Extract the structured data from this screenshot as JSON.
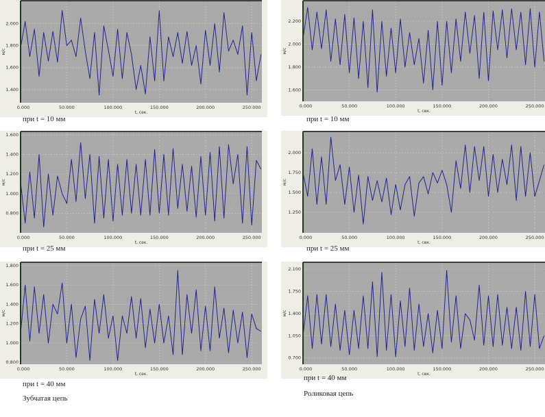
{
  "captions": {
    "c1": "при t = 10 мм",
    "c2": "при t = 10 мм",
    "c3": "при t = 25 мм",
    "c4": "при t = 25 мм",
    "c5": "при t = 40 мм",
    "c6": "при t = 40 мм",
    "left_group": "Зубчатая цепь",
    "right_group": "Роликовая цепь"
  },
  "colors": {
    "plot_bg": "#a9a9a9",
    "frame_bg": "#efeee6",
    "line": "#23238f",
    "grid": "#c8c8c8",
    "left_axis": "#1f3a1f"
  },
  "chart_data": [
    {
      "type": "line",
      "xlabel": "t, сек.",
      "ylabel": "м/с",
      "xlim": [
        0,
        261
      ],
      "ylim": [
        1.28,
        2.21
      ],
      "grid": true,
      "xticks": [
        0,
        50,
        100,
        150,
        200,
        250
      ],
      "xtick_labels": [
        "0.000",
        "50.000",
        "100.000",
        "150.000",
        "200.000",
        "250.000"
      ],
      "yticks": [
        1.4,
        1.6,
        1.8,
        2.0
      ],
      "ytick_labels": [
        "1.400",
        "1.600",
        "1.800",
        "2.000"
      ],
      "x": [
        0,
        5,
        10,
        15,
        20,
        25,
        30,
        35,
        40,
        45,
        50,
        55,
        60,
        65,
        70,
        75,
        80,
        85,
        90,
        95,
        100,
        105,
        110,
        115,
        120,
        125,
        130,
        135,
        140,
        145,
        150,
        155,
        160,
        165,
        170,
        175,
        180,
        185,
        190,
        195,
        200,
        205,
        210,
        215,
        220,
        225,
        230,
        235,
        240,
        245,
        250,
        255,
        260
      ],
      "series": [
        {
          "values": [
            1.78,
            2.02,
            1.7,
            1.95,
            1.52,
            1.92,
            1.66,
            1.93,
            1.65,
            2.12,
            1.8,
            1.85,
            1.7,
            2.05,
            1.75,
            1.5,
            1.92,
            1.35,
            1.98,
            1.76,
            1.52,
            1.95,
            1.5,
            1.92,
            1.72,
            1.4,
            1.62,
            1.36,
            1.88,
            1.48,
            2.12,
            1.48,
            1.88,
            1.7,
            1.92,
            1.64,
            1.93,
            1.62,
            1.8,
            1.45,
            1.94,
            1.62,
            2.0,
            1.56,
            2.1,
            1.75,
            1.85,
            1.72,
            1.98,
            1.35,
            1.92,
            1.48,
            1.72
          ]
        }
      ]
    },
    {
      "type": "line",
      "xlabel": "t, сек.",
      "ylabel": "м/с",
      "xlim": [
        0,
        261
      ],
      "ylim": [
        1.5,
        2.38
      ],
      "grid": true,
      "xticks": [
        0,
        50,
        100,
        150,
        200,
        250
      ],
      "xtick_labels": [
        "0.000",
        "50.000",
        "100.000",
        "150.000",
        "200.000",
        "250.000"
      ],
      "yticks": [
        1.6,
        1.8,
        2.0,
        2.2
      ],
      "ytick_labels": [
        "1.600",
        "1.800",
        "2.000",
        "2.200"
      ],
      "x": [
        0,
        5,
        10,
        15,
        20,
        25,
        30,
        35,
        40,
        45,
        50,
        55,
        60,
        65,
        70,
        75,
        80,
        85,
        90,
        95,
        100,
        105,
        110,
        115,
        120,
        125,
        130,
        135,
        140,
        145,
        150,
        155,
        160,
        165,
        170,
        175,
        180,
        185,
        190,
        195,
        200,
        205,
        210,
        215,
        220,
        225,
        230,
        235,
        240,
        245,
        250,
        255,
        260
      ],
      "series": [
        {
          "values": [
            2.05,
            2.32,
            1.95,
            2.28,
            1.96,
            2.3,
            1.85,
            2.22,
            1.82,
            2.26,
            1.75,
            2.23,
            1.7,
            2.2,
            1.62,
            2.3,
            1.58,
            2.2,
            1.72,
            2.14,
            1.75,
            2.22,
            1.8,
            2.1,
            1.82,
            2.05,
            1.66,
            2.12,
            1.6,
            2.2,
            1.64,
            2.2,
            1.75,
            2.22,
            1.85,
            2.28,
            1.92,
            2.25,
            1.7,
            2.28,
            1.68,
            2.29,
            1.95,
            2.3,
            1.88,
            2.31,
            1.95,
            2.28,
            1.82,
            2.31,
            1.8,
            2.28,
            1.85
          ]
        }
      ]
    },
    {
      "type": "line",
      "xlabel": "t, сек.",
      "ylabel": "м/с",
      "xlim": [
        0,
        261
      ],
      "ylim": [
        0.6,
        1.635
      ],
      "grid": true,
      "xticks": [
        0,
        50,
        100,
        150,
        200,
        250
      ],
      "xtick_labels": [
        "0.000",
        "50.000",
        "100.000",
        "150.000",
        "200.000",
        "250.000"
      ],
      "yticks": [
        0.8,
        1.0,
        1.2,
        1.4,
        1.6
      ],
      "ytick_labels": [
        "0.800",
        "1.000",
        "1.200",
        "1.400",
        "1.600"
      ],
      "x": [
        0,
        5,
        10,
        15,
        20,
        25,
        30,
        35,
        40,
        45,
        50,
        55,
        60,
        65,
        70,
        75,
        80,
        85,
        90,
        95,
        100,
        105,
        110,
        115,
        120,
        125,
        130,
        135,
        140,
        145,
        150,
        155,
        160,
        165,
        170,
        175,
        180,
        185,
        190,
        195,
        200,
        205,
        210,
        215,
        220,
        225,
        230,
        235,
        240,
        245,
        250,
        255,
        260
      ],
      "series": [
        {
          "values": [
            1.12,
            0.7,
            1.22,
            0.75,
            1.4,
            0.66,
            1.2,
            0.78,
            1.18,
            1.0,
            0.9,
            1.35,
            0.92,
            1.52,
            0.95,
            1.4,
            0.7,
            1.38,
            0.75,
            1.35,
            0.72,
            1.3,
            0.78,
            1.35,
            0.8,
            1.3,
            0.78,
            1.35,
            0.78,
            1.45,
            0.8,
            1.4,
            0.78,
            1.46,
            0.85,
            1.3,
            0.82,
            1.28,
            0.76,
            1.38,
            0.78,
            1.42,
            0.72,
            1.48,
            0.75,
            1.5,
            1.1,
            1.4,
            0.7,
            1.48,
            0.68,
            1.34,
            1.25
          ]
        }
      ]
    },
    {
      "type": "line",
      "xlabel": "t, сек.",
      "ylabel": "м/с",
      "xlim": [
        0,
        261
      ],
      "ylim": [
        0.99,
        2.27
      ],
      "grid": true,
      "xticks": [
        0,
        50,
        100,
        150,
        200,
        250
      ],
      "xtick_labels": [
        "0.000",
        "50.000",
        "100.000",
        "150.000",
        "200.000",
        "250.000"
      ],
      "yticks": [
        1.25,
        1.5,
        1.75,
        2.0
      ],
      "ytick_labels": [
        "1.250",
        "1.500",
        "1.750",
        "2.000"
      ],
      "x": [
        0,
        5,
        10,
        15,
        20,
        25,
        30,
        35,
        40,
        45,
        50,
        55,
        60,
        65,
        70,
        75,
        80,
        85,
        90,
        95,
        100,
        105,
        110,
        115,
        120,
        125,
        130,
        135,
        140,
        145,
        150,
        155,
        160,
        165,
        170,
        175,
        180,
        185,
        190,
        195,
        200,
        205,
        210,
        215,
        220,
        225,
        230,
        235,
        240,
        245,
        250,
        255,
        260
      ],
      "series": [
        {
          "values": [
            1.75,
            1.45,
            2.05,
            1.35,
            1.95,
            1.35,
            2.2,
            1.65,
            1.85,
            1.35,
            1.82,
            1.25,
            1.72,
            1.1,
            1.7,
            1.4,
            1.65,
            1.38,
            1.68,
            1.22,
            1.6,
            1.28,
            1.6,
            1.7,
            1.2,
            1.62,
            1.7,
            1.48,
            1.75,
            1.62,
            1.78,
            1.6,
            1.25,
            1.9,
            1.55,
            2.1,
            1.5,
            2.08,
            1.65,
            2.08,
            1.45,
            1.98,
            1.5,
            1.92,
            1.6,
            2.1,
            1.4,
            2.08,
            1.45,
            2.0,
            1.45,
            1.65,
            1.85
          ]
        }
      ]
    },
    {
      "type": "line",
      "xlabel": "t, сек.",
      "ylabel": "м/с",
      "xlim": [
        0,
        261
      ],
      "ylim": [
        0.78,
        1.835
      ],
      "grid": true,
      "xticks": [
        0,
        50,
        100,
        150,
        200,
        250
      ],
      "xtick_labels": [
        "0.000",
        "50.000",
        "100.000",
        "150.000",
        "200.000",
        "250.000"
      ],
      "yticks": [
        0.8,
        1.0,
        1.2,
        1.4,
        1.6,
        1.8
      ],
      "ytick_labels": [
        "0.800",
        "1.000",
        "1.200",
        "1.400",
        "1.600",
        "1.800"
      ],
      "x": [
        0,
        5,
        10,
        15,
        20,
        25,
        30,
        35,
        40,
        45,
        50,
        55,
        60,
        65,
        70,
        75,
        80,
        85,
        90,
        95,
        100,
        105,
        110,
        115,
        120,
        125,
        130,
        135,
        140,
        145,
        150,
        155,
        160,
        165,
        170,
        175,
        180,
        185,
        190,
        195,
        200,
        205,
        210,
        215,
        220,
        225,
        230,
        235,
        240,
        245,
        250,
        255,
        260
      ],
      "series": [
        {
          "values": [
            1.1,
            1.6,
            1.02,
            1.58,
            1.1,
            1.5,
            1.0,
            1.4,
            1.3,
            1.62,
            1.0,
            1.4,
            0.85,
            1.25,
            1.38,
            0.82,
            1.45,
            1.1,
            1.5,
            1.05,
            1.28,
            0.82,
            1.28,
            1.1,
            1.48,
            1.05,
            1.46,
            0.95,
            1.35,
            1.0,
            1.4,
            1.0,
            1.28,
            0.88,
            1.75,
            0.88,
            1.5,
            1.1,
            1.55,
            0.92,
            1.38,
            0.92,
            1.58,
            1.05,
            1.36,
            0.9,
            1.34,
            1.0,
            1.32,
            0.85,
            1.3,
            1.15,
            1.12
          ]
        }
      ]
    },
    {
      "type": "line",
      "xlabel": "t, сек.",
      "ylabel": "м/с",
      "xlim": [
        0,
        261
      ],
      "ylim": [
        0.6,
        2.21
      ],
      "grid": true,
      "xticks": [
        0,
        50,
        100,
        150,
        200,
        250
      ],
      "xtick_labels": [
        "0.000",
        "50.000",
        "100.000",
        "150.000",
        "200.000",
        "250.000"
      ],
      "yticks": [
        0.7,
        1.05,
        1.4,
        1.75,
        2.1
      ],
      "ytick_labels": [
        "0.700",
        "1.050",
        "1.400",
        "1.750",
        "2.100"
      ],
      "x": [
        0,
        5,
        10,
        15,
        20,
        25,
        30,
        35,
        40,
        45,
        50,
        55,
        60,
        65,
        70,
        75,
        80,
        85,
        90,
        95,
        100,
        105,
        110,
        115,
        120,
        125,
        130,
        135,
        140,
        145,
        150,
        155,
        160,
        165,
        170,
        175,
        180,
        185,
        190,
        195,
        200,
        205,
        210,
        215,
        220,
        225,
        230,
        235,
        240,
        245,
        250,
        255,
        260
      ],
      "series": [
        {
          "values": [
            1.05,
            1.68,
            0.85,
            1.7,
            0.92,
            1.7,
            0.88,
            1.55,
            0.82,
            1.45,
            0.75,
            1.45,
            0.85,
            1.68,
            0.85,
            1.9,
            0.72,
            2.05,
            0.82,
            1.7,
            0.72,
            1.6,
            0.88,
            1.8,
            0.82,
            1.55,
            0.88,
            1.4,
            0.78,
            1.45,
            0.85,
            2.08,
            0.95,
            1.68,
            0.85,
            1.4,
            1.3,
            0.98,
            1.85,
            0.9,
            1.68,
            0.88,
            1.7,
            0.9,
            1.5,
            0.85,
            1.5,
            0.82,
            1.75,
            0.88,
            1.7,
            0.85,
            1.05
          ]
        }
      ]
    }
  ]
}
